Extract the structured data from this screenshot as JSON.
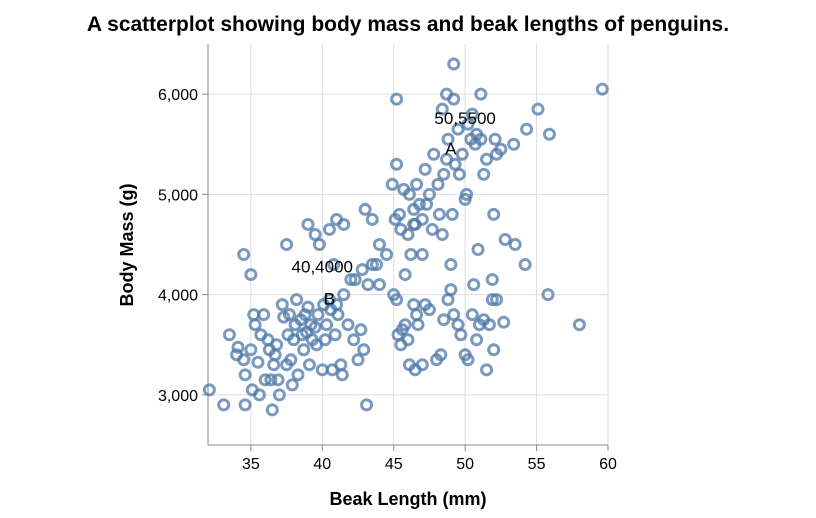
{
  "chart_data": {
    "type": "scatter",
    "title": "A scatterplot showing body mass and beak lengths of penguins.",
    "xlabel": "Beak Length (mm)",
    "ylabel": "Body Mass (g)",
    "xlim": [
      32,
      60
    ],
    "ylim": [
      2500,
      6500
    ],
    "x_ticks": [
      35,
      40,
      45,
      50,
      55,
      60
    ],
    "y_ticks": [
      3000,
      4000,
      5000,
      6000
    ],
    "x_tick_labels": [
      "35",
      "40",
      "45",
      "50",
      "55",
      "60"
    ],
    "y_tick_labels": [
      "3,000",
      "4,000",
      "5,000",
      "6,000"
    ],
    "grid": true,
    "point_color": "#4c78a8",
    "annotations": [
      {
        "text": "50,5500",
        "x": 50,
        "y": 5700
      },
      {
        "text": "A",
        "x": 49,
        "y": 5400
      },
      {
        "text": "40,4000",
        "x": 40,
        "y": 4220
      },
      {
        "text": "B",
        "x": 40.5,
        "y": 3900
      }
    ],
    "points": [
      [
        32.1,
        3050
      ],
      [
        33.1,
        2900
      ],
      [
        34.6,
        2900
      ],
      [
        33.5,
        3600
      ],
      [
        34.0,
        3400
      ],
      [
        34.1,
        3475
      ],
      [
        34.5,
        3350
      ],
      [
        34.6,
        3200
      ],
      [
        35.0,
        3450
      ],
      [
        35.1,
        3050
      ],
      [
        35.2,
        3800
      ],
      [
        35.3,
        3700
      ],
      [
        35.5,
        3325
      ],
      [
        35.6,
        3000
      ],
      [
        35.7,
        3600
      ],
      [
        35.9,
        3800
      ],
      [
        36.0,
        3150
      ],
      [
        36.2,
        3550
      ],
      [
        36.3,
        3450
      ],
      [
        36.4,
        3150
      ],
      [
        36.5,
        2850
      ],
      [
        36.6,
        3300
      ],
      [
        36.7,
        3400
      ],
      [
        36.8,
        3500
      ],
      [
        36.9,
        3150
      ],
      [
        37.0,
        3000
      ],
      [
        37.2,
        3900
      ],
      [
        37.3,
        3775
      ],
      [
        37.5,
        3300
      ],
      [
        37.6,
        3600
      ],
      [
        37.7,
        3800
      ],
      [
        37.8,
        3350
      ],
      [
        37.9,
        3100
      ],
      [
        38.0,
        3550
      ],
      [
        38.1,
        3700
      ],
      [
        38.2,
        3950
      ],
      [
        38.3,
        3200
      ],
      [
        38.5,
        3750
      ],
      [
        38.6,
        3600
      ],
      [
        38.7,
        3450
      ],
      [
        38.8,
        3800
      ],
      [
        38.9,
        3625
      ],
      [
        39.0,
        3875
      ],
      [
        39.1,
        3300
      ],
      [
        39.2,
        3700
      ],
      [
        39.3,
        3550
      ],
      [
        39.5,
        3675
      ],
      [
        39.6,
        3500
      ],
      [
        39.7,
        3800
      ],
      [
        39.8,
        4500
      ],
      [
        40.0,
        3250
      ],
      [
        40.1,
        3900
      ],
      [
        40.2,
        3550
      ],
      [
        40.3,
        3700
      ],
      [
        40.5,
        3950
      ],
      [
        40.6,
        3850
      ],
      [
        40.7,
        3250
      ],
      [
        40.8,
        4300
      ],
      [
        40.9,
        3600
      ],
      [
        41.0,
        3900
      ],
      [
        41.1,
        3800
      ],
      [
        41.3,
        3300
      ],
      [
        41.4,
        3200
      ],
      [
        41.5,
        4000
      ],
      [
        41.8,
        3700
      ],
      [
        42.0,
        4150
      ],
      [
        42.2,
        3550
      ],
      [
        42.3,
        4150
      ],
      [
        42.5,
        3350
      ],
      [
        42.7,
        3650
      ],
      [
        42.8,
        4250
      ],
      [
        42.9,
        3450
      ],
      [
        43.1,
        2900
      ],
      [
        43.2,
        4100
      ],
      [
        43.5,
        4300
      ],
      [
        34.5,
        4400
      ],
      [
        35.0,
        4200
      ],
      [
        37.5,
        4500
      ],
      [
        39.0,
        4700
      ],
      [
        39.5,
        4600
      ],
      [
        40.5,
        4650
      ],
      [
        41.0,
        4750
      ],
      [
        41.5,
        4700
      ],
      [
        43.0,
        4850
      ],
      [
        43.5,
        4750
      ],
      [
        44.0,
        4500
      ],
      [
        44.5,
        4400
      ],
      [
        45.0,
        4000
      ],
      [
        45.2,
        3950
      ],
      [
        45.3,
        3600
      ],
      [
        45.5,
        3500
      ],
      [
        45.6,
        3650
      ],
      [
        45.8,
        3700
      ],
      [
        46.0,
        3550
      ],
      [
        46.1,
        3300
      ],
      [
        46.4,
        3900
      ],
      [
        46.5,
        3250
      ],
      [
        46.6,
        3800
      ],
      [
        46.7,
        3700
      ],
      [
        47.0,
        3300
      ],
      [
        47.2,
        3900
      ],
      [
        47.5,
        3850
      ],
      [
        48.0,
        3350
      ],
      [
        48.3,
        3400
      ],
      [
        48.5,
        3750
      ],
      [
        48.8,
        3950
      ],
      [
        49.0,
        4050
      ],
      [
        49.2,
        3800
      ],
      [
        49.5,
        3700
      ],
      [
        49.7,
        3600
      ],
      [
        50.0,
        3400
      ],
      [
        50.2,
        3350
      ],
      [
        50.5,
        3800
      ],
      [
        50.8,
        3550
      ],
      [
        51.0,
        3700
      ],
      [
        51.3,
        3750
      ],
      [
        51.5,
        3250
      ],
      [
        51.7,
        3700
      ],
      [
        52.0,
        3450
      ],
      [
        52.2,
        3950
      ],
      [
        52.7,
        3725
      ],
      [
        44.9,
        5100
      ],
      [
        45.1,
        4750
      ],
      [
        45.2,
        5300
      ],
      [
        45.4,
        4800
      ],
      [
        45.5,
        4650
      ],
      [
        45.7,
        5050
      ],
      [
        45.8,
        4200
      ],
      [
        46.0,
        4600
      ],
      [
        46.1,
        5000
      ],
      [
        46.2,
        4400
      ],
      [
        46.4,
        4850
      ],
      [
        46.5,
        4700
      ],
      [
        46.6,
        5100
      ],
      [
        46.8,
        4900
      ],
      [
        47.0,
        4750
      ],
      [
        47.2,
        5250
      ],
      [
        47.3,
        4900
      ],
      [
        47.5,
        5000
      ],
      [
        47.7,
        4650
      ],
      [
        47.8,
        5400
      ],
      [
        48.1,
        5100
      ],
      [
        48.2,
        4800
      ],
      [
        48.4,
        4600
      ],
      [
        48.5,
        5200
      ],
      [
        48.7,
        5350
      ],
      [
        48.8,
        5550
      ],
      [
        49.1,
        4800
      ],
      [
        49.3,
        5300
      ],
      [
        49.5,
        5650
      ],
      [
        49.6,
        5200
      ],
      [
        49.8,
        5400
      ],
      [
        50.0,
        4950
      ],
      [
        50.1,
        5000
      ],
      [
        50.2,
        5700
      ],
      [
        50.4,
        5550
      ],
      [
        50.5,
        5800
      ],
      [
        50.7,
        5500
      ],
      [
        50.8,
        5600
      ],
      [
        51.1,
        5550
      ],
      [
        51.3,
        5200
      ],
      [
        51.5,
        5350
      ],
      [
        52.1,
        5550
      ],
      [
        52.2,
        5400
      ],
      [
        52.5,
        5450
      ],
      [
        53.4,
        5500
      ],
      [
        54.3,
        5650
      ],
      [
        55.1,
        5850
      ],
      [
        55.9,
        5600
      ],
      [
        45.2,
        5950
      ],
      [
        48.4,
        5850
      ],
      [
        48.7,
        6000
      ],
      [
        49.2,
        5950
      ],
      [
        49.2,
        6300
      ],
      [
        51.1,
        6000
      ],
      [
        59.6,
        6050
      ],
      [
        52.0,
        4800
      ],
      [
        53.5,
        4500
      ],
      [
        54.2,
        4300
      ],
      [
        55.8,
        4000
      ],
      [
        58.0,
        3700
      ],
      [
        51.9,
        4150
      ],
      [
        50.9,
        4450
      ],
      [
        50.6,
        4100
      ],
      [
        52.8,
        4550
      ],
      [
        51.9,
        3950
      ],
      [
        49.0,
        4300
      ],
      [
        46.4,
        4700
      ],
      [
        47.0,
        4400
      ],
      [
        44.0,
        4100
      ],
      [
        43.8,
        4300
      ]
    ]
  }
}
